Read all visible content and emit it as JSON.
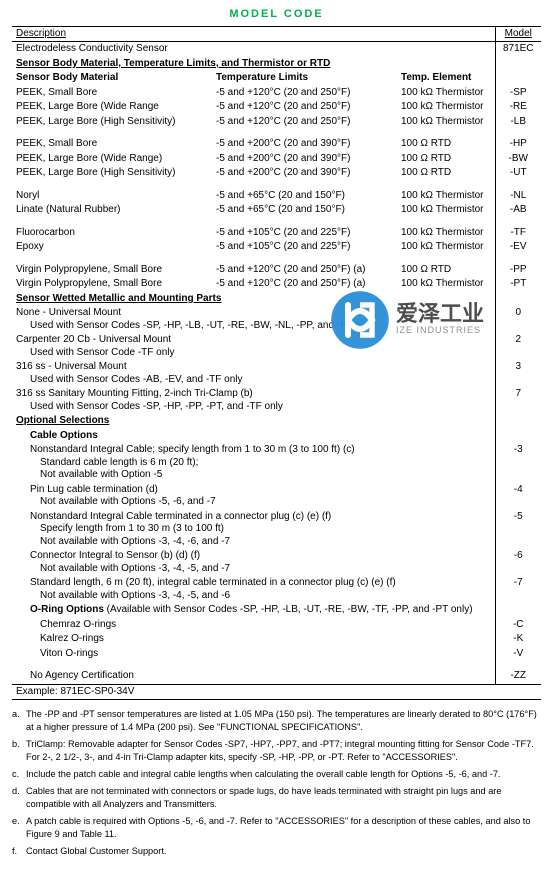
{
  "header": "MODEL CODE",
  "table": {
    "col_description": "Description",
    "col_model": "Model",
    "product_desc": "Electrodeless Conductivity Sensor",
    "product_model": "871EC",
    "sec1_title": "Sensor Body Material, Temperature Limits, and Thermistor or RTD",
    "sec1_h1": "Sensor Body Material",
    "sec1_h2": "Temperature Limits",
    "sec1_h3": "Temp. Element",
    "g1": [
      {
        "m": "PEEK, Small Bore",
        "t": "-5 and +120°C (20 and 250°F)",
        "e": "100 kΩ Thermistor",
        "c": "-SP"
      },
      {
        "m": "PEEK, Large Bore (Wide Range",
        "t": "-5 and +120°C (20 and 250°F)",
        "e": "100 kΩ Thermistor",
        "c": "-RE"
      },
      {
        "m": "PEEK, Large Bore (High Sensitivity)",
        "t": "-5 and +120°C (20 and 250°F)",
        "e": "100 kΩ Thermistor",
        "c": "-LB"
      }
    ],
    "g2": [
      {
        "m": "PEEK, Small Bore",
        "t": "-5 and +200°C (20 and 390°F)",
        "e": "100 Ω RTD",
        "c": "-HP"
      },
      {
        "m": "PEEK, Large Bore (Wide Range)",
        "t": "-5 and +200°C (20 and 390°F)",
        "e": "100 Ω RTD",
        "c": "-BW"
      },
      {
        "m": "PEEK, Large Bore (High Sensitivity)",
        "t": "-5 and +200°C (20 and 390°F)",
        "e": "100 Ω RTD",
        "c": "-UT"
      }
    ],
    "g3": [
      {
        "m": "Noryl",
        "t": "-5 and +65°C (20 and 150°F)",
        "e": "100 kΩ Thermistor",
        "c": "-NL"
      },
      {
        "m": "Linate (Natural Rubber)",
        "t": "-5 and +65°C (20 and 150°F)",
        "e": "100 kΩ Thermistor",
        "c": "-AB"
      }
    ],
    "g4": [
      {
        "m": "Fluorocarbon",
        "t": "-5 and +105°C (20 and 225°F)",
        "e": "100 kΩ Thermistor",
        "c": "-TF"
      },
      {
        "m": "Epoxy",
        "t": "-5 and +105°C (20 and 225°F)",
        "e": "100 kΩ Thermistor",
        "c": "-EV"
      }
    ],
    "g5": [
      {
        "m": "Virgin Polypropylene, Small Bore",
        "t": "-5 and +120°C (20 and 250°F) (a)",
        "e": "100 Ω RTD",
        "c": "-PP"
      },
      {
        "m": "Virgin Polypropylene, Small Bore",
        "t": "-5 and +120°C (20 and 250°F) (a)",
        "e": "100 kΩ Thermistor",
        "c": "-PT"
      }
    ],
    "sec2_title": "Sensor Wetted Metallic and Mounting Parts",
    "sec2": [
      {
        "l1": "None - Universal Mount",
        "l2": "Used with Sensor Codes -SP, -HP, -LB, -UT, -RE, -BW, -NL, -PP, and -PT only",
        "c": "0"
      },
      {
        "l1": "Carpenter 20 Cb - Universal Mount",
        "l2": "Used with Sensor Code -TF only",
        "c": "2"
      },
      {
        "l1": "316 ss - Universal Mount",
        "l2": "Used with Sensor Codes -AB, -EV, and -TF only",
        "c": "3"
      },
      {
        "l1": "316 ss Sanitary Mounting Fitting, 2-inch Tri-Clamp (b)",
        "l2": "Used with Sensor Codes -SP, -HP, -PP, -PT, and -TF only",
        "c": "7"
      }
    ],
    "sec3_title": "Optional Selections",
    "sec3_sub1": "Cable Options",
    "cables": [
      {
        "l1": "Nonstandard Integral Cable; specify length from 1 to 30 m (3 to 100 ft) (c)",
        "l2": "Standard cable length is 6 m (20 ft);",
        "l3": "Not available with Option -5",
        "c": "-3"
      },
      {
        "l1": "Pin Lug cable termination (d)",
        "l2": "Not available with Options -5, -6, and -7",
        "l3": "",
        "c": "-4"
      },
      {
        "l1": "Nonstandard Integral Cable terminated in a connector plug (c) (e) (f)",
        "l2": "Specify length from 1 to 30 m (3 to 100 ft)",
        "l3": "Not available with Options -3, -4, -6, and -7",
        "c": "-5"
      },
      {
        "l1": "Connector Integral to Sensor (b) (d) (f)",
        "l2": "Not available with Options -3, -4, -5, and -7",
        "l3": "",
        "c": "-6"
      },
      {
        "l1": "Standard length, 6 m (20 ft), integral cable terminated in a connector plug (c) (e) (f)",
        "l2": "Not available with Options -3, -4, -5, and -6",
        "l3": "",
        "c": "-7"
      }
    ],
    "sec3_sub2": "O-Ring Options",
    "oring_note": " (Available with Sensor Codes -SP, -HP, -LB, -UT, -RE, -BW, -TF, -PP, and -PT only)",
    "orings": [
      {
        "l": "Chemraz O-rings",
        "c": "-C"
      },
      {
        "l": "Kalrez O-rings",
        "c": "-K"
      },
      {
        "l": "Viton O-rings",
        "c": "-V"
      }
    ],
    "agency": {
      "l": "No Agency Certification",
      "c": "-ZZ"
    },
    "example": "Example: 871EC-SP0-34V"
  },
  "notes": [
    {
      "k": "a",
      "t": "The -PP and -PT sensor temperatures are listed at 1.05 MPa (150 psi). The temperatures are linearly derated to 80°C (176°F) at a higher pressure of 1.4 MPa (200 psi). See \"FUNCTIONAL SPECIFICATIONS\"."
    },
    {
      "k": "b",
      "t": "TriClamp: Removable adapter for Sensor Codes -SP7, -HP7, -PP7, and -PT7; integral mounting fitting for Sensor Code -TF7. For 2-, 2 1/2-, 3-, and 4-in Tri-Clamp adapter kits, specify -SP, -HP, -PP, or -PT. Refer to \"ACCESSORIES\"."
    },
    {
      "k": "c",
      "t": "Include the patch cable and integral cable lengths when calculating the overall cable length for Options -5, -6, and -7."
    },
    {
      "k": "d",
      "t": "Cables that are not terminated with connectors or spade lugs, do have leads terminated with straight pin lugs and are compatible with all Analyzers and Transmitters."
    },
    {
      "k": "e",
      "t": "A patch cable is required with Options -5, -6, and -7. Refer to \"ACCESSORIES\" for a description of these cables, and also to Figure 9 and Table 11."
    },
    {
      "k": "f",
      "t": "Contact Global Customer Support."
    }
  ],
  "watermark": {
    "cn": "爱泽工业",
    "en": "IZE INDUSTRIES"
  }
}
